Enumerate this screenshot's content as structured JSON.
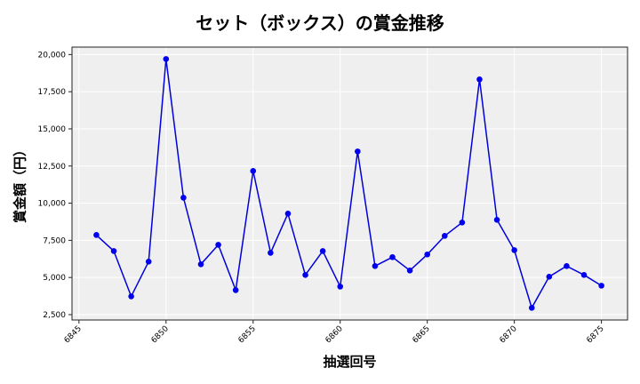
{
  "chart_data": {
    "type": "line",
    "title": "セット（ボックス）の賞金推移",
    "xlabel": "抽選回号",
    "ylabel": "賞金額（円）",
    "x": [
      6846,
      6847,
      6848,
      6849,
      6850,
      6851,
      6852,
      6853,
      6854,
      6855,
      6856,
      6857,
      6858,
      6859,
      6860,
      6861,
      6862,
      6863,
      6864,
      6865,
      6866,
      6867,
      6868,
      6869,
      6870,
      6871,
      6872,
      6873,
      6874,
      6875
    ],
    "series": [
      {
        "name": "賞金額",
        "color": "#0000dd",
        "values": [
          7860,
          6780,
          3730,
          6070,
          19700,
          10370,
          5890,
          7200,
          4150,
          12170,
          6660,
          9300,
          5170,
          6780,
          4390,
          13480,
          5770,
          6370,
          5470,
          6550,
          7800,
          8700,
          18330,
          8880,
          6840,
          2960,
          5050,
          5770,
          5170,
          4450
        ]
      }
    ],
    "xticks": [
      6845,
      6850,
      6855,
      6860,
      6865,
      6870,
      6875
    ],
    "yticks": [
      2500,
      5000,
      7500,
      10000,
      12500,
      15000,
      17500,
      20000
    ],
    "ytick_labels": [
      "2,500",
      "5,000",
      "7,500",
      "10,000",
      "12,500",
      "15,000",
      "17,500",
      "20,000"
    ],
    "xlim": [
      6844.6,
      6876.5
    ],
    "ylim": [
      2140,
      20500
    ],
    "grid": true,
    "legend": null,
    "colors": {
      "line": "#0000dd",
      "marker": "#0000ee",
      "plot_bg": "#efefef",
      "grid": "#ffffff"
    }
  }
}
